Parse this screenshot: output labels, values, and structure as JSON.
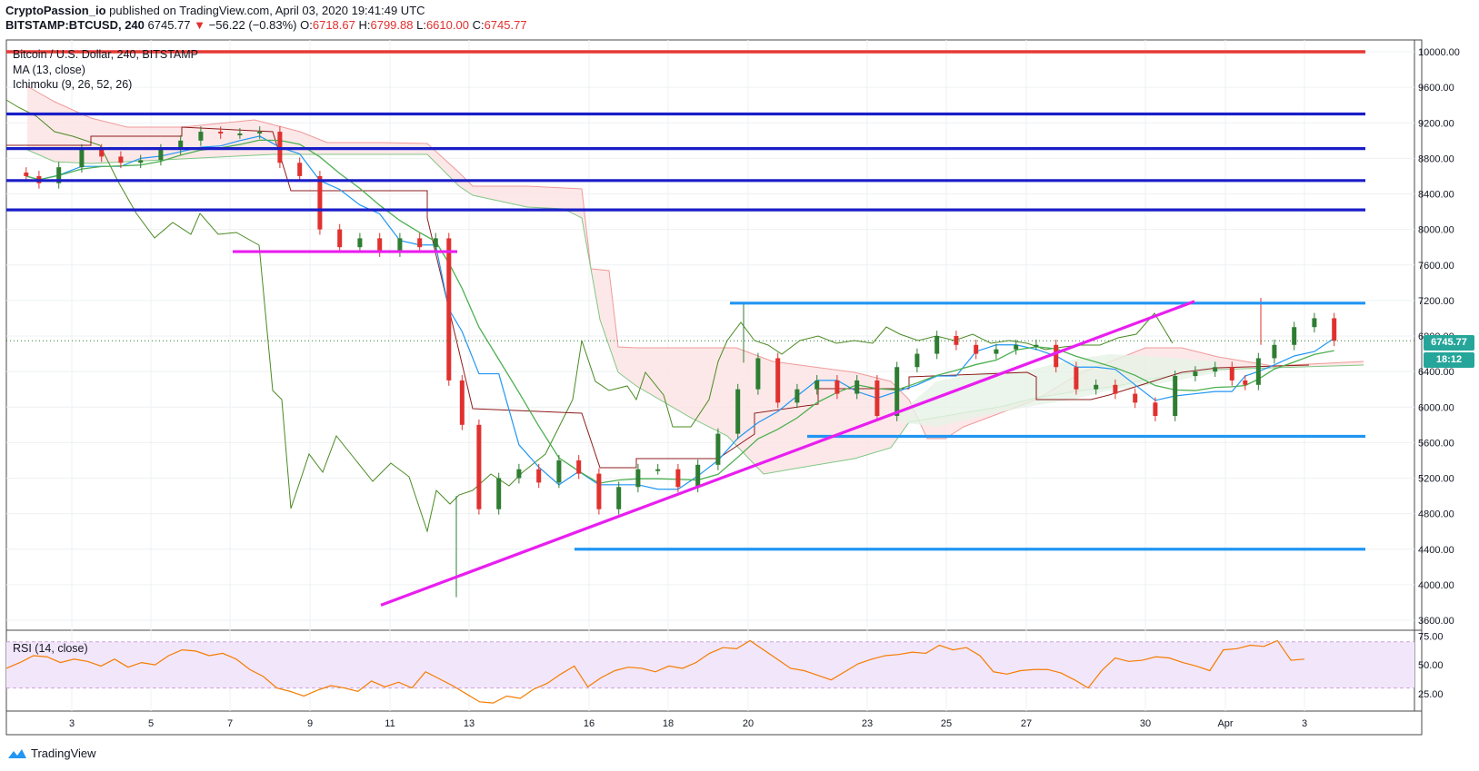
{
  "header": {
    "author": "CryptoPassion_io",
    "published": "published on TradingView.com, April 03, 2020 19:41:49 UTC",
    "symbol": "BITSTAMP:BTCUSD, 240",
    "last": "6745.77",
    "arrow": "▼",
    "change": "−56.22 (−0.83%)",
    "o_label": "O:",
    "o": "6718.67",
    "h_label": "H:",
    "h": "6799.88",
    "l_label": "L:",
    "l": "6610.00",
    "c_label": "C:",
    "c": "6745.77"
  },
  "legend": {
    "title": "Bitcoin / U.S. Dollar, 240, BITSTAMP",
    "ma": "MA (13, close)",
    "ichimoku": "Ichimoku (9, 26, 52, 26)",
    "rsi": "RSI (14, close)"
  },
  "price_label": "6745.77",
  "time_label": "18:12",
  "brand": "TradingView",
  "colors": {
    "up": "#2e7d32",
    "down": "#e0312f",
    "ma": "#4caf50",
    "tenkan": "#2196f3",
    "kijun": "#8d1c1c",
    "chikou": "#4a8a22",
    "cloud_bear": "#fce4e4",
    "cloud_bull": "#e6f3e6",
    "resistance": "#e53935",
    "support_blue": "#1a1ec7",
    "range_blue": "#2196f3",
    "magenta": "#e91ef0",
    "rsi_line": "#f57c00",
    "rsi_band": "#f2e6fa"
  },
  "chart_data": {
    "type": "candlestick",
    "title": "Bitcoin / U.S. Dollar, 240, BITSTAMP",
    "x_ticks": [
      "3",
      "5",
      "7",
      "9",
      "11",
      "13",
      "16",
      "18",
      "20",
      "23",
      "25",
      "27",
      "30",
      "Apr",
      "3"
    ],
    "y_ticks": [
      3600,
      4000,
      4400,
      4800,
      5200,
      5600,
      6000,
      6400,
      6800,
      7200,
      7600,
      8000,
      8400,
      8800,
      9200,
      9600,
      10000
    ],
    "ylim": [
      3500,
      10150
    ],
    "current_price": 6745.77,
    "horizontal_lines": [
      {
        "price": 10000,
        "color": "resistance",
        "from": "start",
        "to": "end"
      },
      {
        "price": 9300,
        "color": "support_blue",
        "from": "start",
        "to": "end"
      },
      {
        "price": 8910,
        "color": "support_blue",
        "from": "start",
        "to": "end"
      },
      {
        "price": 8550,
        "color": "support_blue",
        "from": "start",
        "to": "end"
      },
      {
        "price": 8220,
        "color": "support_blue",
        "from": "start",
        "to": "end"
      },
      {
        "price": 7750,
        "color": "magenta",
        "from": "Mar 7",
        "to": "Mar 13"
      },
      {
        "price": 7170,
        "color": "range_blue",
        "from": "Mar 20",
        "to": "end"
      },
      {
        "price": 5670,
        "color": "range_blue",
        "from": "Mar 22",
        "to": "end"
      },
      {
        "price": 4400,
        "color": "range_blue",
        "from": "Mar 16",
        "to": "end"
      }
    ],
    "trendline": {
      "from": {
        "date": "Mar 11",
        "price": 3770
      },
      "to": {
        "date": "Mar 31",
        "price": 7190
      }
    },
    "close_path": [
      [
        "Mar 1",
        8600
      ],
      [
        "Mar 2",
        8520
      ],
      [
        "Mar 2",
        8700
      ],
      [
        "Mar 3",
        8900
      ],
      [
        "Mar 3",
        8820
      ],
      [
        "Mar 4",
        8750
      ],
      [
        "Mar 4",
        8780
      ],
      [
        "Mar 5",
        8900
      ],
      [
        "Mar 5",
        9000
      ],
      [
        "Mar 6",
        9100
      ],
      [
        "Mar 6",
        9080
      ],
      [
        "Mar 7",
        9080
      ],
      [
        "Mar 7",
        9100
      ],
      [
        "Mar 8",
        8750
      ],
      [
        "Mar 8",
        8600
      ],
      [
        "Mar 9",
        8000
      ],
      [
        "Mar 9",
        7800
      ],
      [
        "Mar 10",
        7900
      ],
      [
        "Mar 10",
        7750
      ],
      [
        "Mar 11",
        7900
      ],
      [
        "Mar 11",
        7800
      ],
      [
        "Mar 12",
        7900
      ],
      [
        "Mar 12",
        6300
      ],
      [
        "Mar 12",
        5800
      ],
      [
        "Mar 13",
        4850
      ],
      [
        "Mar 13",
        5200
      ],
      [
        "Mar 14",
        5300
      ],
      [
        "Mar 14",
        5150
      ],
      [
        "Mar 15",
        5400
      ],
      [
        "Mar 15",
        5250
      ],
      [
        "Mar 16",
        4850
      ],
      [
        "Mar 16",
        5100
      ],
      [
        "Mar 17",
        5300
      ],
      [
        "Mar 17",
        5300
      ],
      [
        "Mar 18",
        5100
      ],
      [
        "Mar 18",
        5350
      ],
      [
        "Mar 19",
        5700
      ],
      [
        "Mar 19",
        6200
      ],
      [
        "Mar 20",
        6550
      ],
      [
        "Mar 20",
        6050
      ],
      [
        "Mar 21",
        6200
      ],
      [
        "Mar 21",
        6300
      ],
      [
        "Mar 22",
        6150
      ],
      [
        "Mar 22",
        6300
      ],
      [
        "Mar 23",
        5900
      ],
      [
        "Mar 23",
        6450
      ],
      [
        "Mar 24",
        6600
      ],
      [
        "Mar 24",
        6800
      ],
      [
        "Mar 25",
        6700
      ],
      [
        "Mar 25",
        6600
      ],
      [
        "Mar 26",
        6650
      ],
      [
        "Mar 26",
        6700
      ],
      [
        "Mar 27",
        6700
      ],
      [
        "Mar 27",
        6450
      ],
      [
        "Mar 28",
        6200
      ],
      [
        "Mar 28",
        6250
      ],
      [
        "Mar 29",
        6150
      ],
      [
        "Mar 29",
        6050
      ],
      [
        "Mar 30",
        5900
      ],
      [
        "Mar 30",
        6350
      ],
      [
        "Mar 31",
        6400
      ],
      [
        "Mar 31",
        6450
      ],
      [
        "Apr 1",
        6300
      ],
      [
        "Apr 1",
        6250
      ],
      [
        "Apr 1",
        6550
      ],
      [
        "Apr 2",
        6700
      ],
      [
        "Apr 2",
        6900
      ],
      [
        "Apr 3",
        7000
      ],
      [
        "Apr 3",
        6745.77
      ]
    ],
    "rsi": {
      "ylim": [
        10,
        80
      ],
      "y_ticks": [
        25,
        50,
        75
      ],
      "band": [
        30,
        70
      ],
      "values": [
        [
          0,
          47
        ],
        [
          6,
          52
        ],
        [
          12,
          58
        ],
        [
          18,
          57
        ],
        [
          24,
          52
        ],
        [
          30,
          55
        ],
        [
          36,
          53
        ],
        [
          42,
          49
        ],
        [
          48,
          55
        ],
        [
          54,
          48
        ],
        [
          60,
          52
        ],
        [
          66,
          50
        ],
        [
          72,
          58
        ],
        [
          78,
          63
        ],
        [
          84,
          62
        ],
        [
          90,
          58
        ],
        [
          96,
          60
        ],
        [
          102,
          55
        ],
        [
          108,
          46
        ],
        [
          114,
          40
        ],
        [
          120,
          30
        ],
        [
          126,
          27
        ],
        [
          132,
          23
        ],
        [
          138,
          28
        ],
        [
          144,
          32
        ],
        [
          150,
          30
        ],
        [
          156,
          27
        ],
        [
          162,
          36
        ],
        [
          168,
          31
        ],
        [
          174,
          35
        ],
        [
          180,
          30
        ],
        [
          186,
          44
        ],
        [
          192,
          38
        ],
        [
          198,
          32
        ],
        [
          204,
          25
        ],
        [
          210,
          18
        ],
        [
          216,
          17
        ],
        [
          222,
          23
        ],
        [
          228,
          21
        ],
        [
          234,
          29
        ],
        [
          240,
          34
        ],
        [
          246,
          42
        ],
        [
          252,
          49
        ],
        [
          258,
          31
        ],
        [
          264,
          39
        ],
        [
          270,
          45
        ],
        [
          276,
          48
        ],
        [
          282,
          47
        ],
        [
          288,
          44
        ],
        [
          294,
          49
        ],
        [
          300,
          47
        ],
        [
          306,
          52
        ],
        [
          312,
          60
        ],
        [
          318,
          65
        ],
        [
          324,
          64
        ],
        [
          330,
          71
        ],
        [
          336,
          63
        ],
        [
          342,
          55
        ],
        [
          348,
          47
        ],
        [
          354,
          45
        ],
        [
          360,
          41
        ],
        [
          366,
          37
        ],
        [
          372,
          44
        ],
        [
          378,
          51
        ],
        [
          384,
          55
        ],
        [
          390,
          58
        ],
        [
          396,
          59
        ],
        [
          402,
          61
        ],
        [
          408,
          60
        ],
        [
          414,
          67
        ],
        [
          420,
          63
        ],
        [
          426,
          65
        ],
        [
          432,
          58
        ],
        [
          438,
          44
        ],
        [
          444,
          42
        ],
        [
          450,
          45
        ],
        [
          456,
          46
        ],
        [
          462,
          46
        ],
        [
          468,
          43
        ],
        [
          474,
          37
        ],
        [
          480,
          30
        ],
        [
          486,
          45
        ],
        [
          492,
          56
        ],
        [
          498,
          53
        ],
        [
          504,
          54
        ],
        [
          510,
          57
        ],
        [
          516,
          56
        ],
        [
          522,
          52
        ],
        [
          528,
          49
        ],
        [
          534,
          45
        ],
        [
          540,
          63
        ],
        [
          546,
          64
        ],
        [
          552,
          67
        ],
        [
          558,
          66
        ],
        [
          564,
          71
        ],
        [
          570,
          54
        ],
        [
          576,
          55
        ]
      ]
    }
  }
}
